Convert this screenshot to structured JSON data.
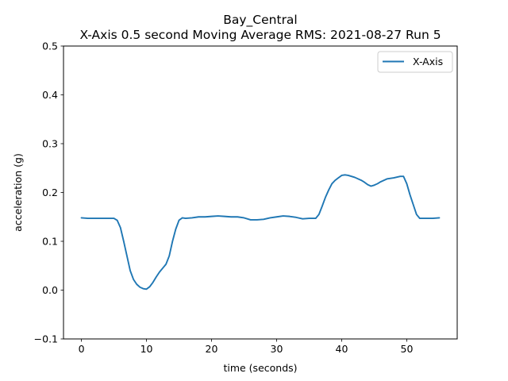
{
  "chart_data": {
    "type": "line",
    "title_line1": "Bay_Central",
    "title_line2": "X-Axis 0.5 second Moving Average RMS: 2021-08-27 Run 5",
    "xlabel": "time (seconds)",
    "ylabel": "acceleration (g)",
    "xlim": [
      -2.75,
      57.75
    ],
    "ylim": [
      -0.1,
      0.5
    ],
    "xticks": [
      0,
      10,
      20,
      30,
      40,
      50
    ],
    "yticks": [
      -0.1,
      0.0,
      0.1,
      0.2,
      0.3,
      0.4,
      0.5
    ],
    "ytick_labels": [
      "−0.1",
      "0.0",
      "0.1",
      "0.2",
      "0.3",
      "0.4",
      "0.5"
    ],
    "legend_position": "upper right",
    "grid": false,
    "series": [
      {
        "name": "X-Axis",
        "color": "#1f77b4",
        "x": [
          0,
          1,
          2,
          3,
          4,
          5,
          5.5,
          6,
          6.5,
          7,
          7.5,
          8,
          8.5,
          9,
          9.5,
          10,
          10.5,
          11,
          11.5,
          12,
          12.5,
          13,
          13.5,
          14,
          14.5,
          15,
          15.5,
          16,
          17,
          18,
          19,
          20,
          21,
          22,
          23,
          24,
          25,
          26,
          27,
          28,
          29,
          30,
          31,
          32,
          33,
          34,
          35,
          36,
          36.5,
          37,
          37.5,
          38,
          38.5,
          39,
          39.5,
          40,
          40.5,
          41,
          42,
          43,
          43.5,
          44,
          44.5,
          45,
          45.5,
          46,
          47,
          48,
          49,
          49.5,
          50,
          50.5,
          51,
          51.5,
          52,
          53,
          54,
          55
        ],
        "y": [
          0.148,
          0.147,
          0.147,
          0.147,
          0.147,
          0.147,
          0.143,
          0.128,
          0.1,
          0.07,
          0.04,
          0.022,
          0.012,
          0.006,
          0.003,
          0.002,
          0.007,
          0.016,
          0.027,
          0.037,
          0.045,
          0.053,
          0.07,
          0.1,
          0.125,
          0.143,
          0.148,
          0.147,
          0.148,
          0.15,
          0.15,
          0.151,
          0.152,
          0.151,
          0.15,
          0.15,
          0.148,
          0.144,
          0.144,
          0.145,
          0.148,
          0.15,
          0.152,
          0.151,
          0.149,
          0.146,
          0.147,
          0.147,
          0.155,
          0.172,
          0.19,
          0.205,
          0.218,
          0.225,
          0.23,
          0.235,
          0.236,
          0.235,
          0.231,
          0.225,
          0.221,
          0.216,
          0.213,
          0.215,
          0.218,
          0.222,
          0.228,
          0.23,
          0.233,
          0.233,
          0.218,
          0.195,
          0.175,
          0.155,
          0.147,
          0.147,
          0.147,
          0.148
        ]
      }
    ]
  }
}
